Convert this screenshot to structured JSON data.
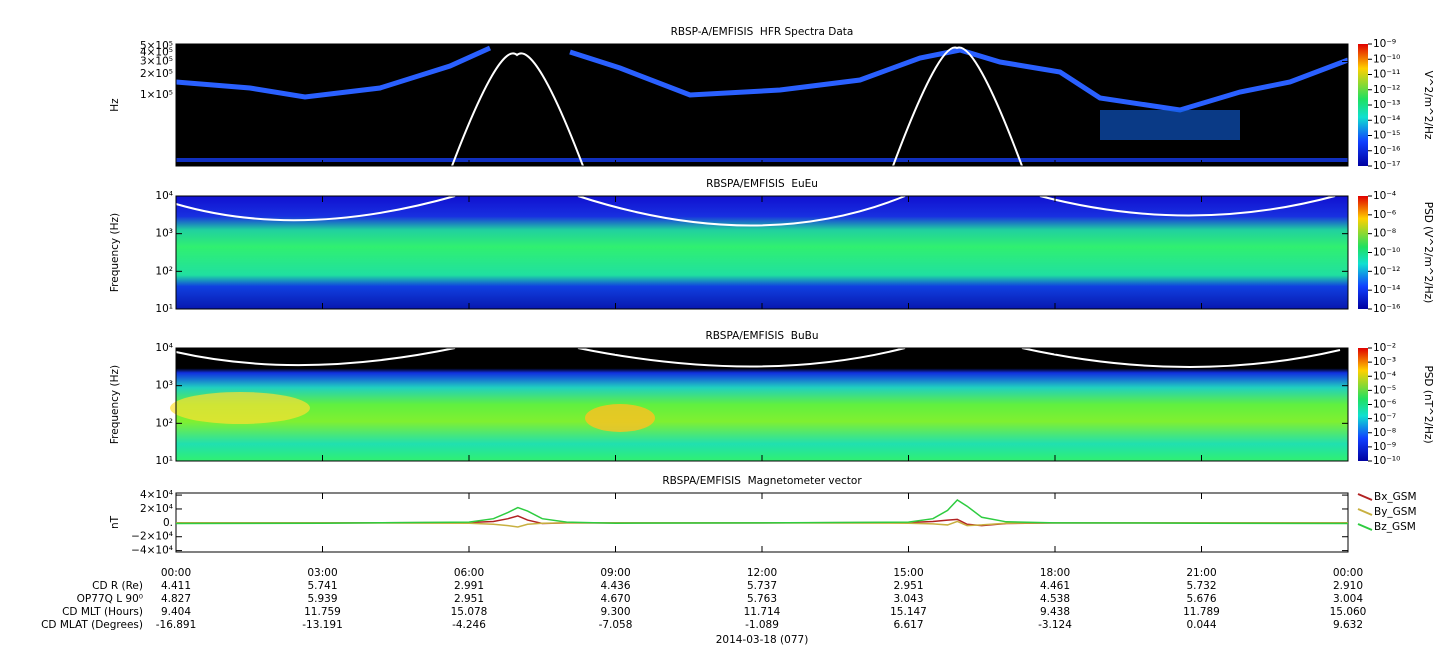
{
  "chart_data": [
    {
      "type": "spectrogram",
      "title": "RBSP-A/EMFISIS  HFR Spectra Data",
      "ylabel": "Hz",
      "log_y": true,
      "ylim": [
        10000,
        530000
      ],
      "yticks": [
        {
          "value": 500000,
          "label": "5×10⁵"
        },
        {
          "value": 400000,
          "label": "4×10⁵"
        },
        {
          "value": 300000,
          "label": "3×10⁵"
        },
        {
          "value": 200000,
          "label": "2×10⁵"
        },
        {
          "value": 100000,
          "label": "1×10⁵"
        }
      ],
      "colorbar_label": "V^2/m^2/Hz",
      "zlim": [
        1e-17,
        1e-09
      ],
      "zticks": [
        {
          "value": 1e-09,
          "label": "10⁻⁹"
        },
        {
          "value": 1e-10,
          "label": "10⁻¹⁰"
        },
        {
          "value": 1e-11,
          "label": "10⁻¹¹"
        },
        {
          "value": 1e-12,
          "label": "10⁻¹²"
        },
        {
          "value": 1e-13,
          "label": "10⁻¹³"
        },
        {
          "value": 1e-14,
          "label": "10⁻¹⁴"
        },
        {
          "value": 1e-15,
          "label": "10⁻¹⁵"
        },
        {
          "value": 1e-16,
          "label": "10⁻¹⁶"
        },
        {
          "value": 1e-17,
          "label": "10⁻¹⁷"
        }
      ]
    },
    {
      "type": "spectrogram",
      "title": "RBSPA/EMFISIS  EuEu",
      "ylabel": "Frequency (Hz)",
      "log_y": true,
      "ylim": [
        10,
        10000
      ],
      "yticks": [
        {
          "value": 10000,
          "label": "10⁴"
        },
        {
          "value": 1000,
          "label": "10³"
        },
        {
          "value": 100,
          "label": "10²"
        },
        {
          "value": 10,
          "label": "10¹"
        }
      ],
      "colorbar_label": "PSD (V^2/m^2/Hz)",
      "zlim": [
        1e-16,
        0.0001
      ],
      "zticks": [
        {
          "value": 0.0001,
          "label": "10⁻⁴"
        },
        {
          "value": 1e-06,
          "label": "10⁻⁶"
        },
        {
          "value": 1e-08,
          "label": "10⁻⁸"
        },
        {
          "value": 1e-10,
          "label": "10⁻¹⁰"
        },
        {
          "value": 1e-12,
          "label": "10⁻¹²"
        },
        {
          "value": 1e-14,
          "label": "10⁻¹⁴"
        },
        {
          "value": 1e-16,
          "label": "10⁻¹⁶"
        }
      ]
    },
    {
      "type": "spectrogram",
      "title": "RBSPA/EMFISIS  BuBu",
      "ylabel": "Frequency (Hz)",
      "log_y": true,
      "ylim": [
        10,
        10000
      ],
      "yticks": [
        {
          "value": 10000,
          "label": "10⁴"
        },
        {
          "value": 1000,
          "label": "10³"
        },
        {
          "value": 100,
          "label": "10²"
        },
        {
          "value": 10,
          "label": "10¹"
        }
      ],
      "colorbar_label": "PSD (nT^2/Hz)",
      "zlim": [
        1e-10,
        0.01
      ],
      "zticks": [
        {
          "value": 0.01,
          "label": "10⁻²"
        },
        {
          "value": 0.001,
          "label": "10⁻³"
        },
        {
          "value": 0.0001,
          "label": "10⁻⁴"
        },
        {
          "value": 1e-05,
          "label": "10⁻⁵"
        },
        {
          "value": 1e-06,
          "label": "10⁻⁶"
        },
        {
          "value": 1e-07,
          "label": "10⁻⁷"
        },
        {
          "value": 1e-08,
          "label": "10⁻⁸"
        },
        {
          "value": 1e-09,
          "label": "10⁻⁹"
        },
        {
          "value": 1e-10,
          "label": "10⁻¹⁰"
        }
      ]
    },
    {
      "type": "line",
      "title": "RBSPA/EMFISIS  Magnetometer vector",
      "ylabel": "nT",
      "log_y": false,
      "ylim": [
        -42000,
        43000
      ],
      "yticks": [
        {
          "value": 40000,
          "label": "4×10⁴"
        },
        {
          "value": 20000,
          "label": "2×10⁴"
        },
        {
          "value": 0,
          "label": "0."
        },
        {
          "value": -20000,
          "label": "−2×10⁴"
        },
        {
          "value": -40000,
          "label": "−4×10⁴"
        }
      ],
      "x": [
        0,
        3,
        6,
        6.5,
        6.8,
        7,
        7.2,
        7.5,
        8,
        9,
        12,
        15,
        15.5,
        15.8,
        16,
        16.2,
        16.5,
        17,
        18,
        21,
        24
      ],
      "series": [
        {
          "name": "Bx_GSM",
          "color": "#b22222",
          "values": [
            0,
            0,
            500,
            2000,
            6000,
            10000,
            4000,
            -1000,
            0,
            0,
            0,
            500,
            2000,
            4000,
            5000,
            -2000,
            -4000,
            -1000,
            0,
            0,
            0
          ]
        },
        {
          "name": "By_GSM",
          "color": "#c8b040",
          "values": [
            0,
            0,
            -500,
            -2000,
            -4000,
            -6000,
            -2000,
            -500,
            0,
            0,
            0,
            -500,
            -1500,
            -3000,
            2000,
            -4000,
            -3000,
            -500,
            0,
            0,
            0
          ]
        },
        {
          "name": "Bz_GSM",
          "color": "#2ecc40",
          "values": [
            -1000,
            -500,
            1000,
            6000,
            15000,
            22000,
            17000,
            6000,
            1000,
            -500,
            0,
            1000,
            6000,
            18000,
            33000,
            24000,
            8000,
            1500,
            0,
            -500,
            -1000
          ]
        }
      ]
    }
  ],
  "x_axis": {
    "xlim": [
      0,
      24
    ],
    "xticks": [
      {
        "value": 0,
        "label": "00:00"
      },
      {
        "value": 3,
        "label": "03:00"
      },
      {
        "value": 6,
        "label": "06:00"
      },
      {
        "value": 9,
        "label": "09:00"
      },
      {
        "value": 12,
        "label": "12:00"
      },
      {
        "value": 15,
        "label": "15:00"
      },
      {
        "value": 18,
        "label": "18:00"
      },
      {
        "value": 21,
        "label": "21:00"
      },
      {
        "value": 24,
        "label": "00:00"
      }
    ],
    "date_label": "2014-03-18 (077)"
  },
  "ephemeris": [
    {
      "label": "CD R (Re)",
      "values": [
        "4.411",
        "5.741",
        "2.991",
        "4.436",
        "5.737",
        "2.951",
        "4.461",
        "5.732",
        "2.910"
      ]
    },
    {
      "label": "OP77Q L 90⁰",
      "values": [
        "4.827",
        "5.939",
        "2.951",
        "4.670",
        "5.763",
        "3.043",
        "4.538",
        "5.676",
        "3.004"
      ]
    },
    {
      "label": "CD MLT (Hours)",
      "values": [
        "9.404",
        "11.759",
        "15.078",
        "9.300",
        "11.714",
        "15.147",
        "9.438",
        "11.789",
        "15.060"
      ]
    },
    {
      "label": "CD MLAT (Degrees)",
      "values": [
        "-16.891",
        "-13.191",
        "-4.246",
        "-7.058",
        "-1.089",
        "6.617",
        "-3.124",
        "0.044",
        "9.632"
      ]
    }
  ]
}
